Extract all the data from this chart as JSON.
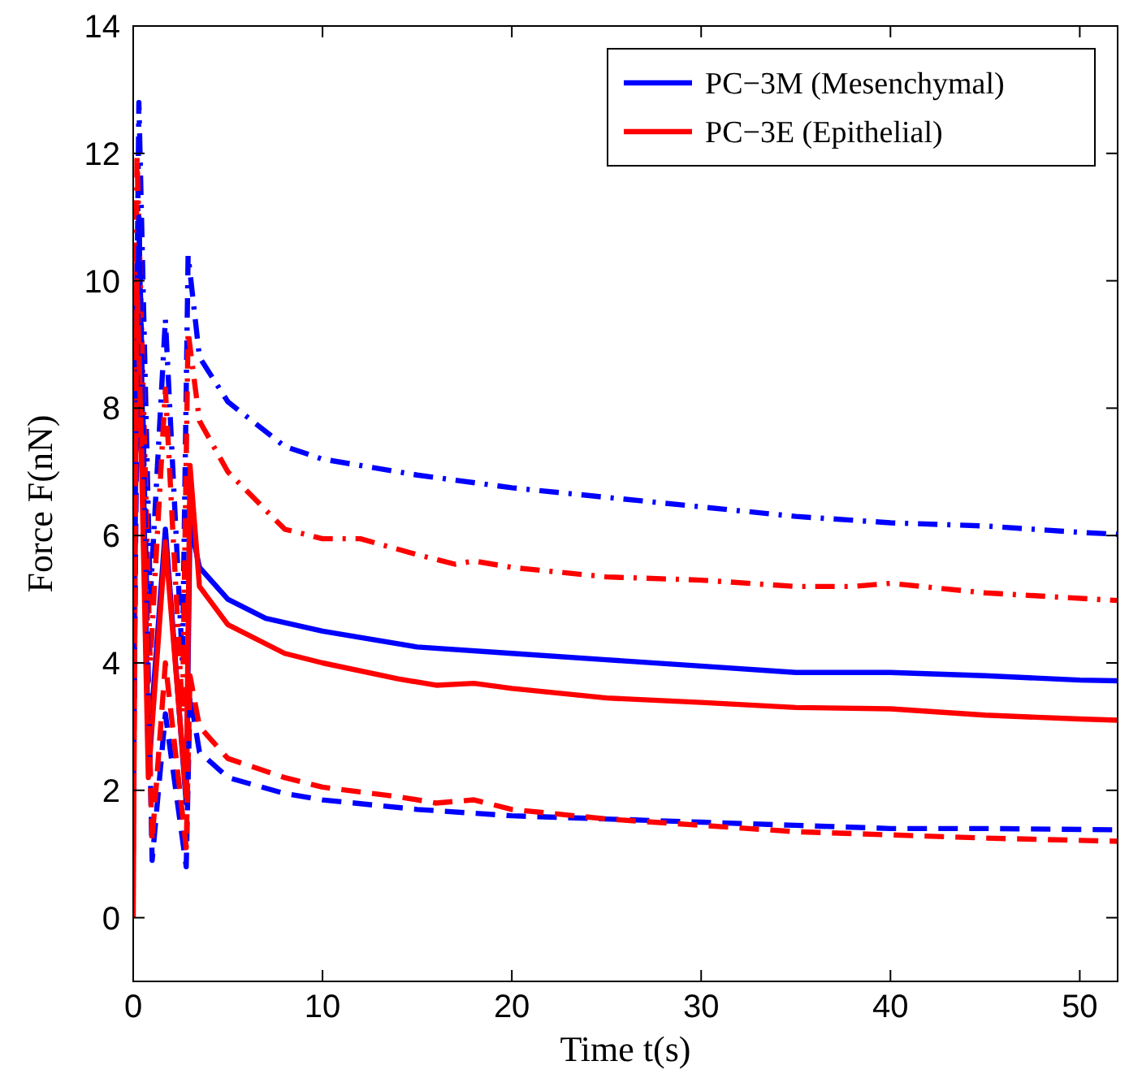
{
  "chart_data": {
    "type": "line",
    "xlabel": "Time t(s)",
    "ylabel": "Force F(nN)",
    "xlim": [
      0,
      52
    ],
    "xticks": [
      0,
      10,
      20,
      30,
      40,
      50
    ],
    "ylim": [
      -1,
      14
    ],
    "yticks": [
      0,
      2,
      4,
      6,
      8,
      10,
      12,
      14
    ],
    "grid": false,
    "legend": "top right",
    "series": [
      {
        "name": "PC−3M (Mesenchymal)",
        "color": "#0000ff",
        "line_style": "solid",
        "x": [
          0.3,
          0.8,
          1.7,
          2.8,
          3.0,
          3.5,
          5,
          7,
          10,
          15,
          20,
          25,
          30,
          35,
          40,
          45,
          50,
          52
        ],
        "values": [
          11,
          2.5,
          6.1,
          1.8,
          6.2,
          5.5,
          5.0,
          4.7,
          4.5,
          4.25,
          4.15,
          4.05,
          3.95,
          3.85,
          3.85,
          3.8,
          3.73,
          3.72
        ]
      },
      {
        "name": "PC−3E (Epithelial)",
        "color": "#ff0000",
        "line_style": "solid",
        "x": [
          0,
          0.2,
          0.8,
          1.7,
          2.8,
          3.0,
          3.5,
          5,
          8,
          10,
          14,
          16,
          18,
          20,
          25,
          30,
          35,
          40,
          45,
          50,
          52
        ],
        "values": [
          0,
          10.5,
          2.2,
          5.9,
          1.9,
          7.1,
          5.2,
          4.6,
          4.15,
          4.0,
          3.75,
          3.65,
          3.68,
          3.6,
          3.45,
          3.38,
          3.3,
          3.28,
          3.18,
          3.12,
          3.1
        ]
      },
      {
        "color": "#0000ff",
        "line_style": "dashdot",
        "x": [
          0,
          0.3,
          0.9,
          1.7,
          2.6,
          2.9,
          3.5,
          5,
          8,
          10,
          15,
          20,
          25,
          30,
          35,
          40,
          45,
          50,
          52
        ],
        "values": [
          4,
          12.8,
          5,
          9.4,
          4,
          10.4,
          8.8,
          8.1,
          7.4,
          7.2,
          6.95,
          6.75,
          6.6,
          6.45,
          6.3,
          6.2,
          6.15,
          6.05,
          6.02
        ]
      },
      {
        "color": "#ff0000",
        "line_style": "dashdot",
        "x": [
          0,
          0.2,
          0.9,
          1.7,
          2.6,
          2.9,
          3.5,
          5,
          8,
          10,
          12,
          15,
          17,
          18,
          20,
          25,
          30,
          35,
          38,
          40,
          45,
          52
        ],
        "values": [
          3,
          12,
          4,
          8.3,
          3.2,
          9.2,
          7.8,
          7.0,
          6.1,
          5.95,
          5.95,
          5.7,
          5.55,
          5.6,
          5.5,
          5.35,
          5.3,
          5.2,
          5.2,
          5.25,
          5.1,
          4.98
        ]
      },
      {
        "color": "#0000ff",
        "line_style": "dashed",
        "x": [
          0,
          0.3,
          1.0,
          1.7,
          2.8,
          3.0,
          3.5,
          5,
          8,
          10,
          15,
          20,
          25,
          30,
          35,
          40,
          45,
          52
        ],
        "values": [
          2,
          11,
          0.9,
          3.2,
          0.8,
          3.5,
          2.6,
          2.2,
          1.95,
          1.85,
          1.7,
          1.6,
          1.55,
          1.5,
          1.45,
          1.4,
          1.4,
          1.38
        ]
      },
      {
        "color": "#ff0000",
        "line_style": "dashed",
        "x": [
          0,
          0.2,
          1.0,
          1.7,
          2.8,
          3.0,
          3.5,
          5,
          8,
          10,
          14,
          16,
          18,
          20,
          25,
          30,
          35,
          40,
          45,
          52
        ],
        "values": [
          1,
          10,
          1.2,
          4.0,
          1.1,
          3.8,
          3.0,
          2.5,
          2.2,
          2.05,
          1.9,
          1.8,
          1.85,
          1.7,
          1.55,
          1.45,
          1.35,
          1.3,
          1.25,
          1.2
        ]
      }
    ]
  }
}
